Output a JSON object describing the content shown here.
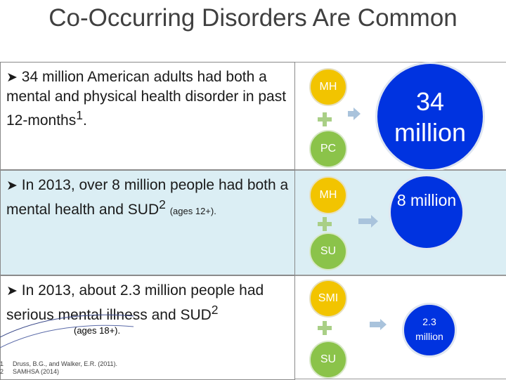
{
  "title": "Co-Occurring Disorders Are Common",
  "rows": [
    {
      "text": "34 million American adults had both a mental and physical health disorder in past 12-months",
      "sup": "1",
      "tail": ".",
      "top_label": "MH",
      "bottom_label": "PC",
      "result": "34 million"
    },
    {
      "text": "In 2013, over 8 million people had both a mental health and SUD",
      "sup": "2",
      "small": "(ages 12+).",
      "top_label": "MH",
      "bottom_label": "SU",
      "result": "8 million"
    },
    {
      "text": "In 2013, about 2.3 million people had serious mental illness and SUD",
      "sup": "2",
      "small": "(ages 18+).",
      "top_label": "SMI",
      "bottom_label": "SU",
      "result": "2.3 million"
    }
  ],
  "footnotes": [
    {
      "num": "1",
      "text": "Druss, B.G., and Walker, E.R. (2011)."
    },
    {
      "num": "2",
      "text": "SAMHSA (2014)"
    }
  ],
  "colors": {
    "mental_health_circle": "#f2c400",
    "other_circle": "#8bc34a",
    "result_circle": "#0033e0",
    "band": "#dbeef4"
  },
  "icons": {
    "bullet": "arrow-bullet",
    "plus": "plus-icon",
    "arrow": "right-arrow-icon"
  }
}
